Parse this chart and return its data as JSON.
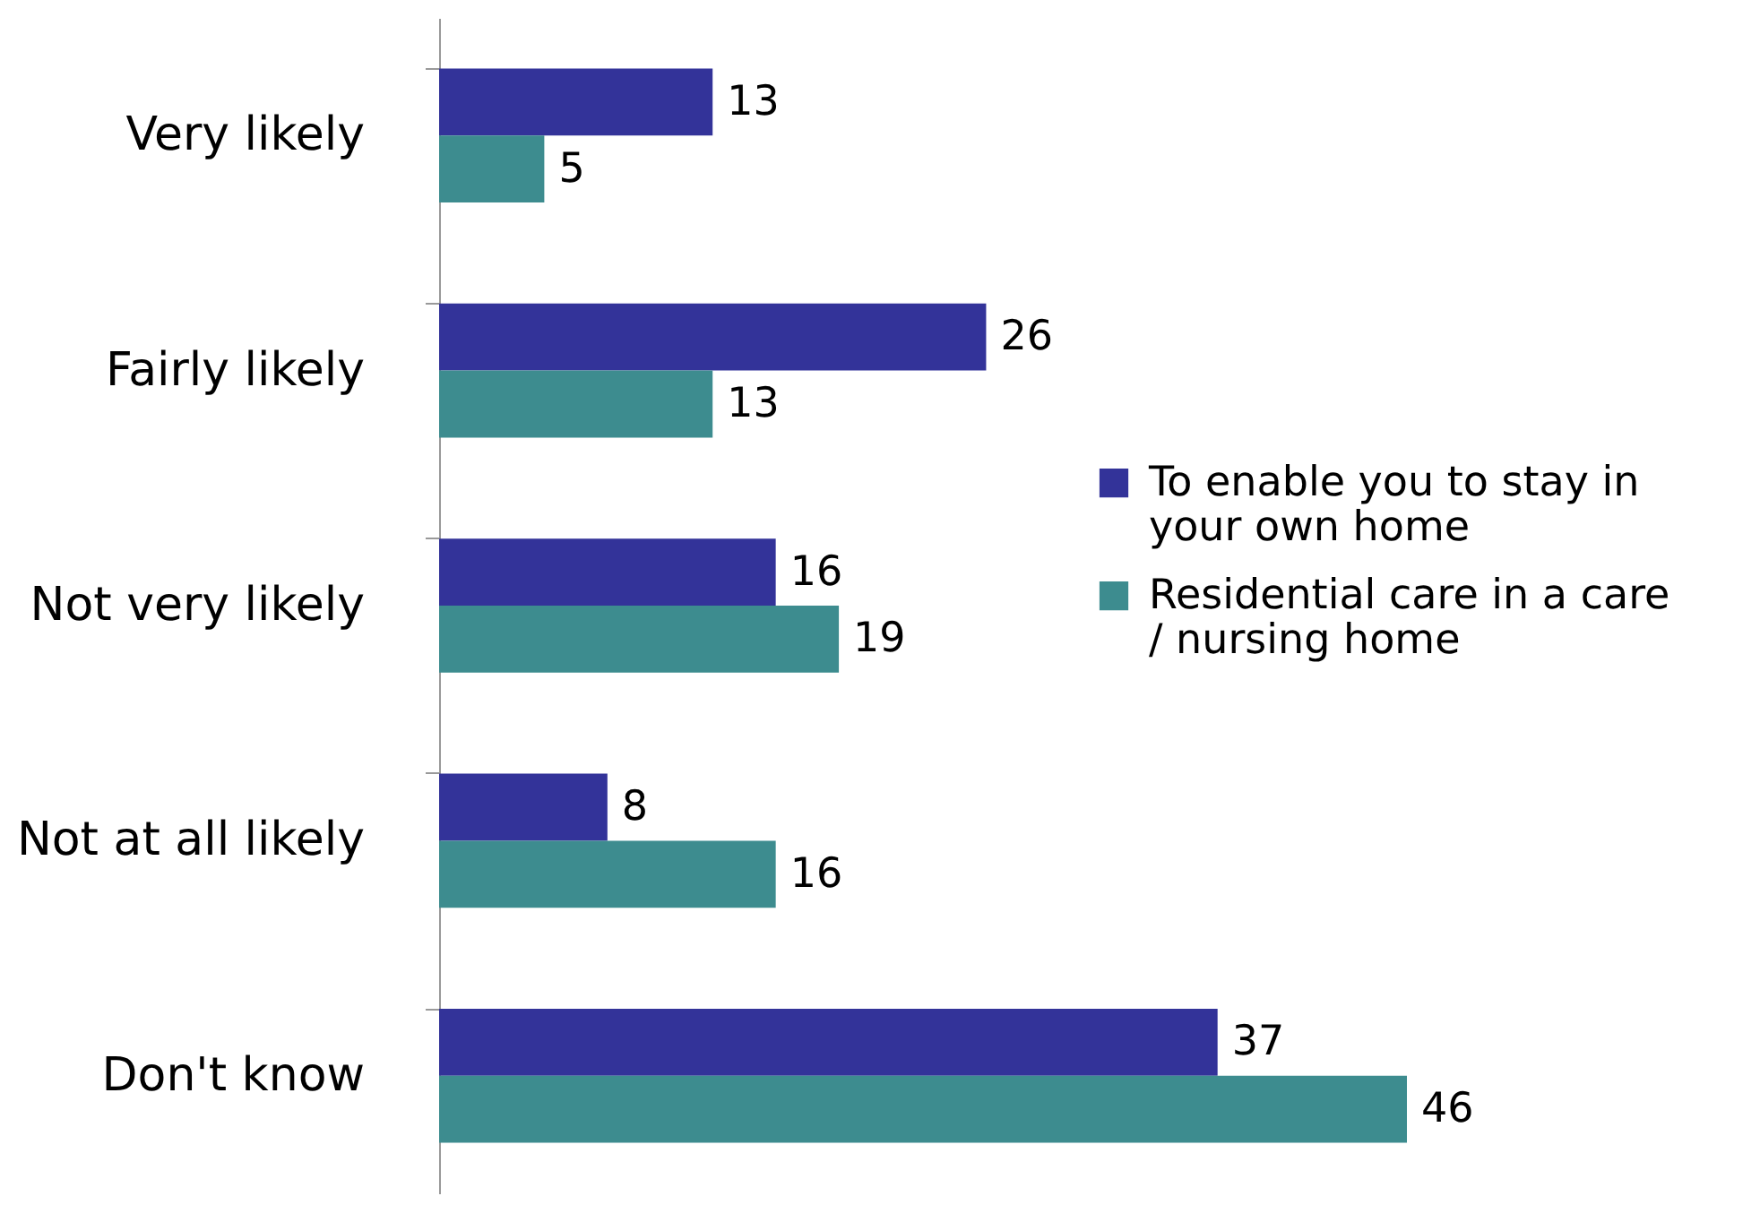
{
  "chart_data": {
    "type": "bar",
    "orientation": "horizontal",
    "categories": [
      "Very likely",
      "Fairly likely",
      "Not very likely",
      "Not at all likely",
      "Don't know"
    ],
    "series": [
      {
        "name": "To enable you to stay in your own home",
        "color": "#333399",
        "values": [
          13,
          26,
          16,
          8,
          37
        ]
      },
      {
        "name": "Residential care in a care / nursing home",
        "color": "#3d8c8f",
        "values": [
          5,
          13,
          19,
          16,
          46
        ]
      }
    ],
    "data_labels": true,
    "legend": "right",
    "grid": false
  }
}
